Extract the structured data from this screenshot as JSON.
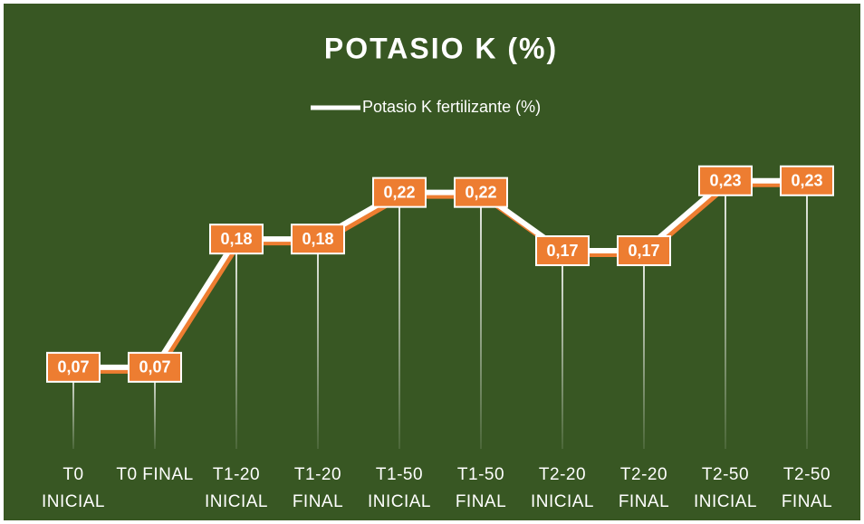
{
  "chart_data": {
    "type": "line",
    "title": "POTASIO K (%)",
    "categories": [
      "T0 INICIAL",
      "T0 FINAL",
      "T1-20 INICIAL",
      "T1-20 FINAL",
      "T1-50 INICIAL",
      "T1-50 FINAL",
      "T2-20 INICIAL",
      "T2-20 FINAL",
      "T2-50 INICIAL",
      "T2-50 FINAL"
    ],
    "series": [
      {
        "name": "Potasio K fertilizante (%)",
        "color": "#ffffff",
        "values": [
          0.07,
          0.07,
          0.18,
          0.18,
          0.22,
          0.22,
          0.17,
          0.17,
          0.23,
          0.23
        ],
        "value_labels": [
          "0,07",
          "0,07",
          "0,18",
          "0,18",
          "0,22",
          "0,22",
          "0,17",
          "0,17",
          "0,23",
          "0,23"
        ]
      }
    ],
    "ylim": [
      0,
      0.25
    ],
    "legend": "top"
  }
}
